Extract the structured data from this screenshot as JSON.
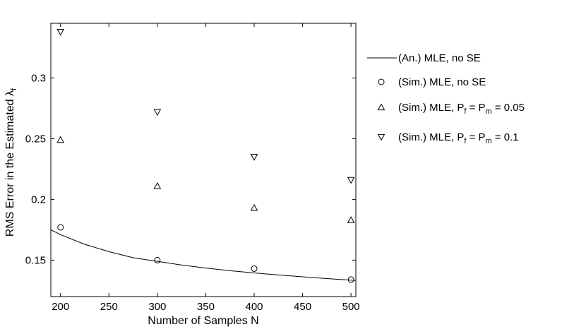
{
  "chart_data": {
    "type": "scatter",
    "xlabel": "Number of Samples N",
    "ylabel": "RMS Error in the Estimated λ",
    "ylabel_subscript": "f",
    "xlim": [
      190,
      505
    ],
    "ylim": [
      0.12,
      0.345
    ],
    "xticks": [
      200,
      250,
      300,
      350,
      400,
      450,
      500
    ],
    "yticks": [
      0.15,
      0.2,
      0.25,
      0.3
    ],
    "ytick_labels": [
      "0.15",
      "0.2",
      "0.25",
      "0.3"
    ],
    "grid": false,
    "legend_position": "outside-right",
    "series": [
      {
        "name": "(An.) MLE, no SE",
        "style": "line",
        "x": [
          190,
          200,
          225,
          250,
          275,
          300,
          325,
          350,
          375,
          400,
          425,
          450,
          475,
          500,
          505
        ],
        "y": [
          0.175,
          0.171,
          0.163,
          0.157,
          0.152,
          0.149,
          0.146,
          0.1435,
          0.1413,
          0.1395,
          0.1378,
          0.1363,
          0.1348,
          0.1335,
          0.1333
        ]
      },
      {
        "name": "(Sim.) MLE, no SE",
        "style": "circle",
        "x": [
          200,
          300,
          400,
          500
        ],
        "y": [
          0.177,
          0.15,
          0.143,
          0.134
        ]
      },
      {
        "name": "(Sim.) MLE, P_f = P_m = 0.05",
        "style": "triangle-up",
        "x": [
          200,
          300,
          400,
          500
        ],
        "y": [
          0.249,
          0.211,
          0.193,
          0.183
        ]
      },
      {
        "name": "(Sim.) MLE, P_f = P_m = 0.1",
        "style": "triangle-down",
        "x": [
          200,
          300,
          400,
          500
        ],
        "y": [
          0.338,
          0.272,
          0.235,
          0.216
        ]
      }
    ],
    "legend": [
      {
        "prefix": "(An.) MLE, no SE",
        "parts": []
      },
      {
        "prefix": "(Sim.) MLE, no SE",
        "parts": []
      },
      {
        "prefix": "(Sim.) MLE, P",
        "parts": [
          "f",
          " = P",
          "m",
          " = 0.05"
        ]
      },
      {
        "prefix": "(Sim.) MLE, P",
        "parts": [
          "f",
          " = P",
          "m",
          " = 0.1"
        ]
      }
    ]
  }
}
